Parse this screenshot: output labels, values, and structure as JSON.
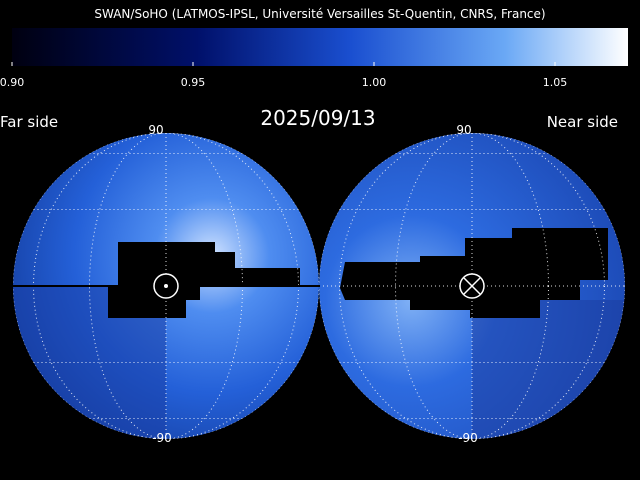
{
  "header": {
    "title": "SWAN/SoHO (LATMOS-IPSL, Université Versailles St-Quentin, CNRS, France)"
  },
  "colorbar": {
    "ticks": [
      "0.90",
      "0.95",
      "1.00",
      "1.05"
    ]
  },
  "date": "2025/09/13",
  "left_panel": {
    "label": "Far side",
    "top_label": "90",
    "bottom_label": "-90"
  },
  "right_panel": {
    "label": "Near side",
    "top_label": "90",
    "bottom_label": "-90"
  }
}
